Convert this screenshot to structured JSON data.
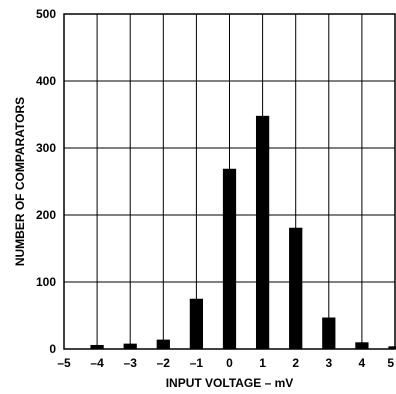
{
  "chart_data": {
    "type": "bar",
    "xlabel": "INPUT VOLTAGE – mV",
    "ylabel": "NUMBER OF COMPARATORS",
    "ylim": [
      0,
      500
    ],
    "xlim": [
      -5,
      5
    ],
    "x_ticks": [
      "–5",
      "–4",
      "–3",
      "–2",
      "–1",
      "0",
      "1",
      "2",
      "3",
      "4",
      "5"
    ],
    "y_ticks": [
      "0",
      "100",
      "200",
      "300",
      "400",
      "500"
    ],
    "grid": true,
    "bar_color": "#000000",
    "categories": [
      -4,
      -3,
      -2,
      -1,
      0,
      1,
      2,
      3,
      4,
      5
    ],
    "values": [
      6,
      8,
      14,
      75,
      269,
      348,
      181,
      47,
      10,
      4
    ]
  }
}
